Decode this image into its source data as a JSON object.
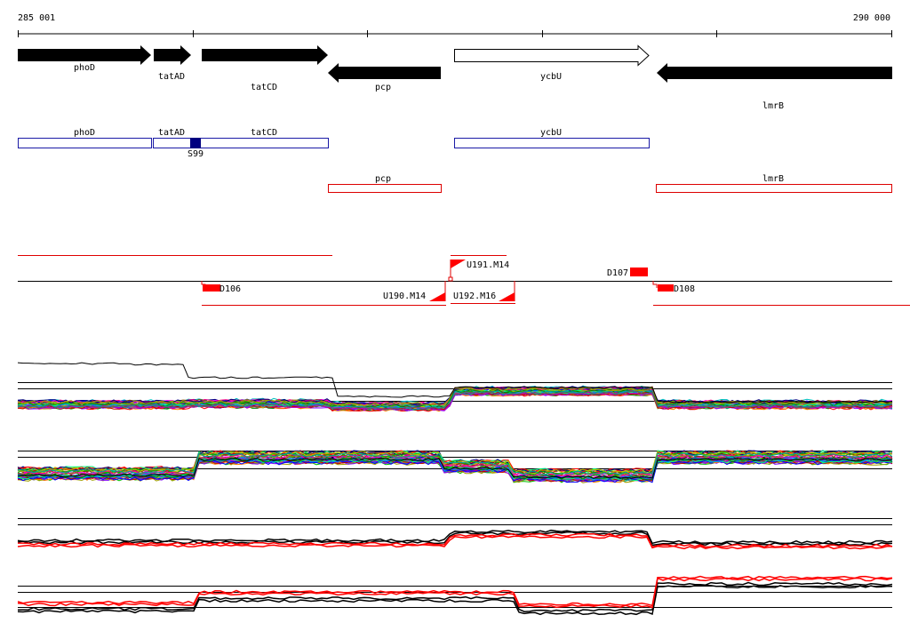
{
  "axis": {
    "start_label": "285 001",
    "end_label": "290 000",
    "start": 285001,
    "end": 290000
  },
  "genes": [
    {
      "name": "phoD",
      "strand": "+",
      "fill": "black"
    },
    {
      "name": "tatAD",
      "strand": "+",
      "fill": "black"
    },
    {
      "name": "tatCD",
      "strand": "+",
      "fill": "black"
    },
    {
      "name": "pcp",
      "strand": "-",
      "fill": "black"
    },
    {
      "name": "ycbU",
      "strand": "+",
      "fill": "white"
    },
    {
      "name": "lmrB",
      "strand": "-",
      "fill": "black"
    }
  ],
  "operon_boxes": [
    {
      "label": "phoD",
      "color": "#1a1aa6"
    },
    {
      "label": "tatAD",
      "color": "#1a1aa6"
    },
    {
      "label": "tatCD",
      "color": "#1a1aa6"
    },
    {
      "label": "ycbU",
      "color": "#1a1aa6"
    },
    {
      "label": "pcp",
      "color": "#dd0000"
    },
    {
      "label": "lmrB",
      "color": "#dd0000"
    }
  ],
  "site_marker": {
    "label": "S99",
    "color": "#000080"
  },
  "features": [
    {
      "label": "D106"
    },
    {
      "label": "U191.M14"
    },
    {
      "label": "D107"
    },
    {
      "label": "D108"
    },
    {
      "label": "U190.M14"
    },
    {
      "label": "U192.M16"
    }
  ],
  "colors": {
    "accent_red": "#ff0000",
    "operon_blue": "#1a1aa6",
    "line_black": "#000000"
  }
}
